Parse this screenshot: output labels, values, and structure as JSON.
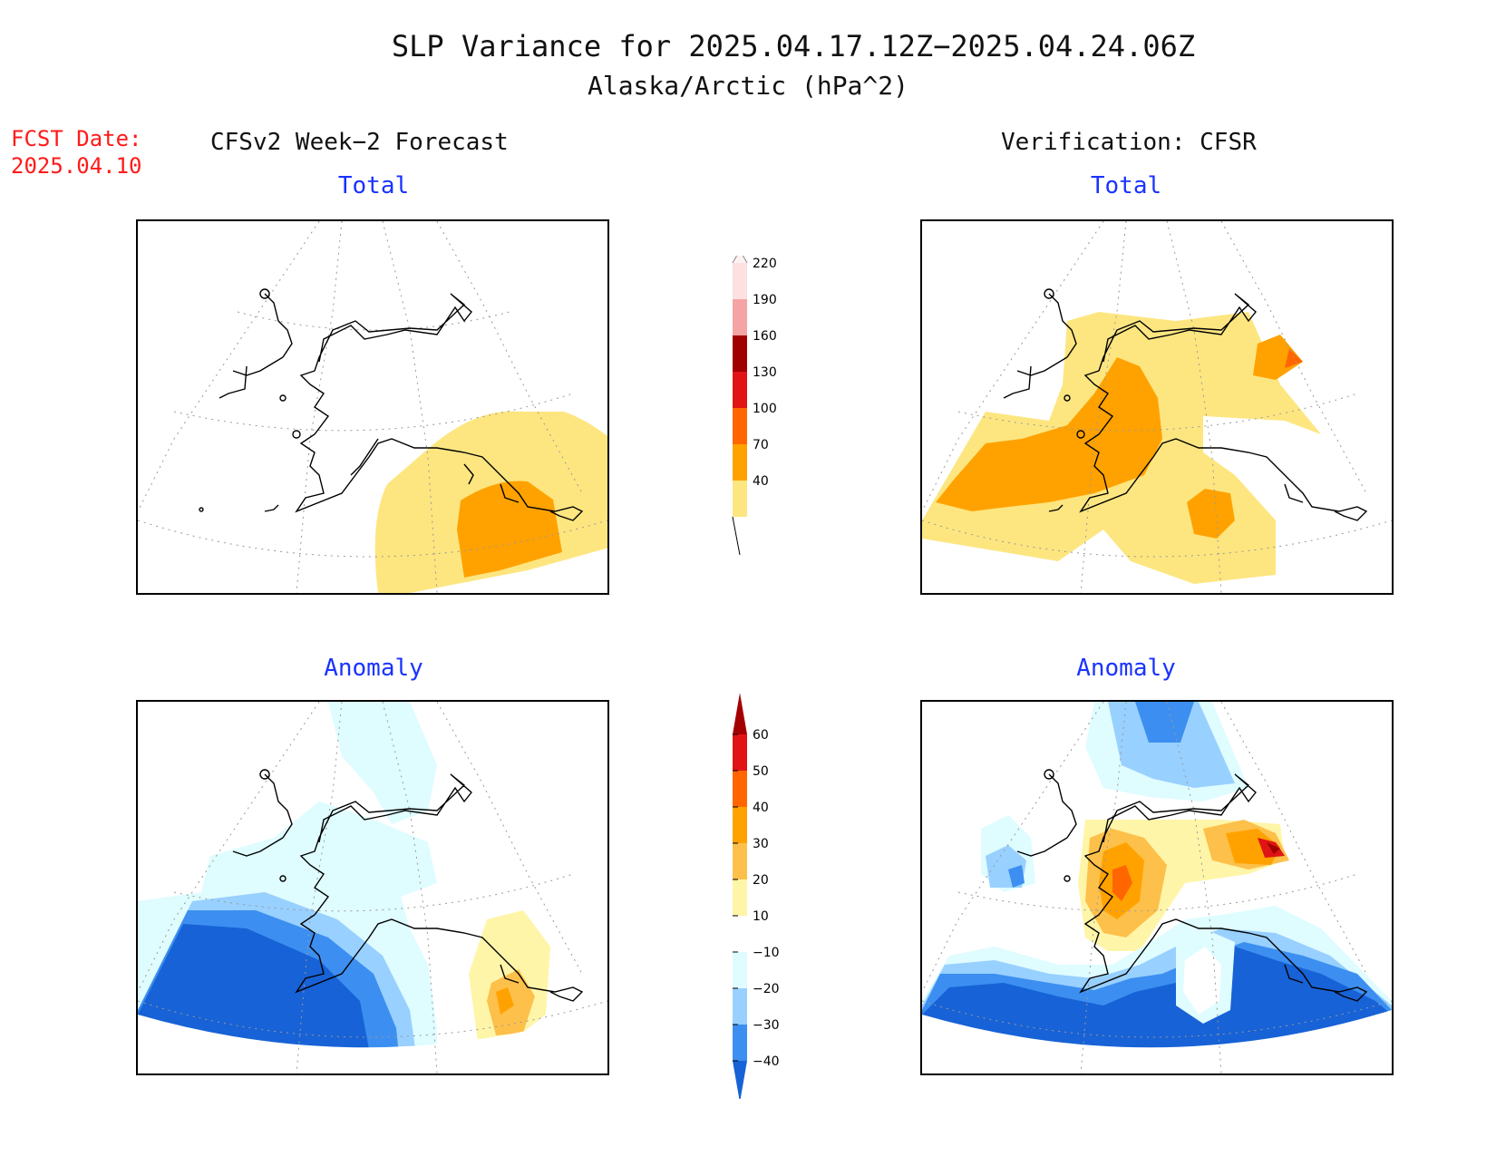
{
  "title": {
    "line1": "SLP Variance for 2025.04.17.12Z−2025.04.24.06Z",
    "line2": "Alaska/Arctic (hPa^2)"
  },
  "fcst_date": {
    "label": "FCST Date:",
    "value": "2025.04.10"
  },
  "columns": {
    "left": "CFSv2 Week−2 Forecast",
    "right": "Verification: CFSR"
  },
  "panels": {
    "forecast_total": "Total",
    "verification_total": "Total",
    "forecast_anomaly": "Anomaly",
    "verification_anomaly": "Anomaly"
  },
  "colorbar_total": {
    "levels": [
      "40",
      "70",
      "100",
      "130",
      "160",
      "190",
      "220"
    ],
    "colors": [
      "#fde680",
      "#ffa200",
      "#ff6600",
      "#e01414",
      "#a00000",
      "#f4a4a4",
      "#fde0e0"
    ]
  },
  "colorbar_anomaly": {
    "levels": [
      "60",
      "50",
      "40",
      "30",
      "20",
      "10",
      "−10",
      "−20",
      "−30",
      "−40"
    ],
    "colors": [
      "#a50000",
      "#e01414",
      "#ff6600",
      "#ffa200",
      "#fdc04a",
      "#fff5a8",
      "#ffffff",
      "#dffcff",
      "#98d0ff",
      "#3c8ff0",
      "#1762d6"
    ]
  }
}
